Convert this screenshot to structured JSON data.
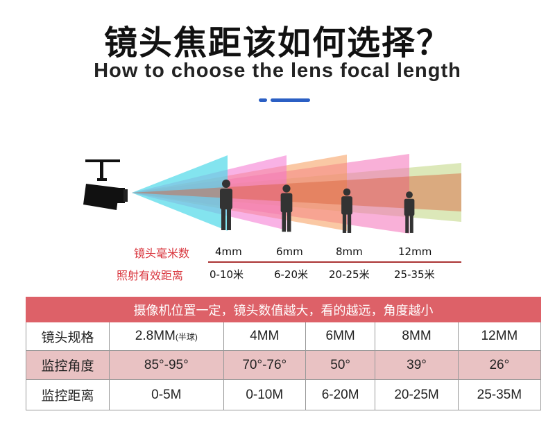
{
  "title": "镜头焦距该如何选择？",
  "subtitle": "How to choose the lens focal length",
  "accent_color": "#2b5fc4",
  "diagram": {
    "row1_label": "镜头毫米数",
    "row2_label": "照射有效距离",
    "lenses": [
      {
        "mm": "4mm",
        "range": "0-10米"
      },
      {
        "mm": "6mm",
        "range": "6-20米"
      },
      {
        "mm": "8mm",
        "range": "20-25米"
      },
      {
        "mm": "12mm",
        "range": "25-35米"
      }
    ]
  },
  "table": {
    "header": "摄像机位置一定，镜头数值越大，看的越远，角度越小",
    "header_color": "#dd6168",
    "rows": [
      {
        "label": "镜头规格",
        "cells": [
          "2.8MM",
          "4MM",
          "6MM",
          "8MM",
          "12MM"
        ],
        "note": "(半球)"
      },
      {
        "label": "监控角度",
        "cells": [
          "85°-95°",
          "70°-76°",
          "50°",
          "39°",
          "26°"
        ]
      },
      {
        "label": "监控距离",
        "cells": [
          "0-5M",
          "0-10M",
          "6-20M",
          "20-25M",
          "25-35M"
        ]
      }
    ]
  }
}
